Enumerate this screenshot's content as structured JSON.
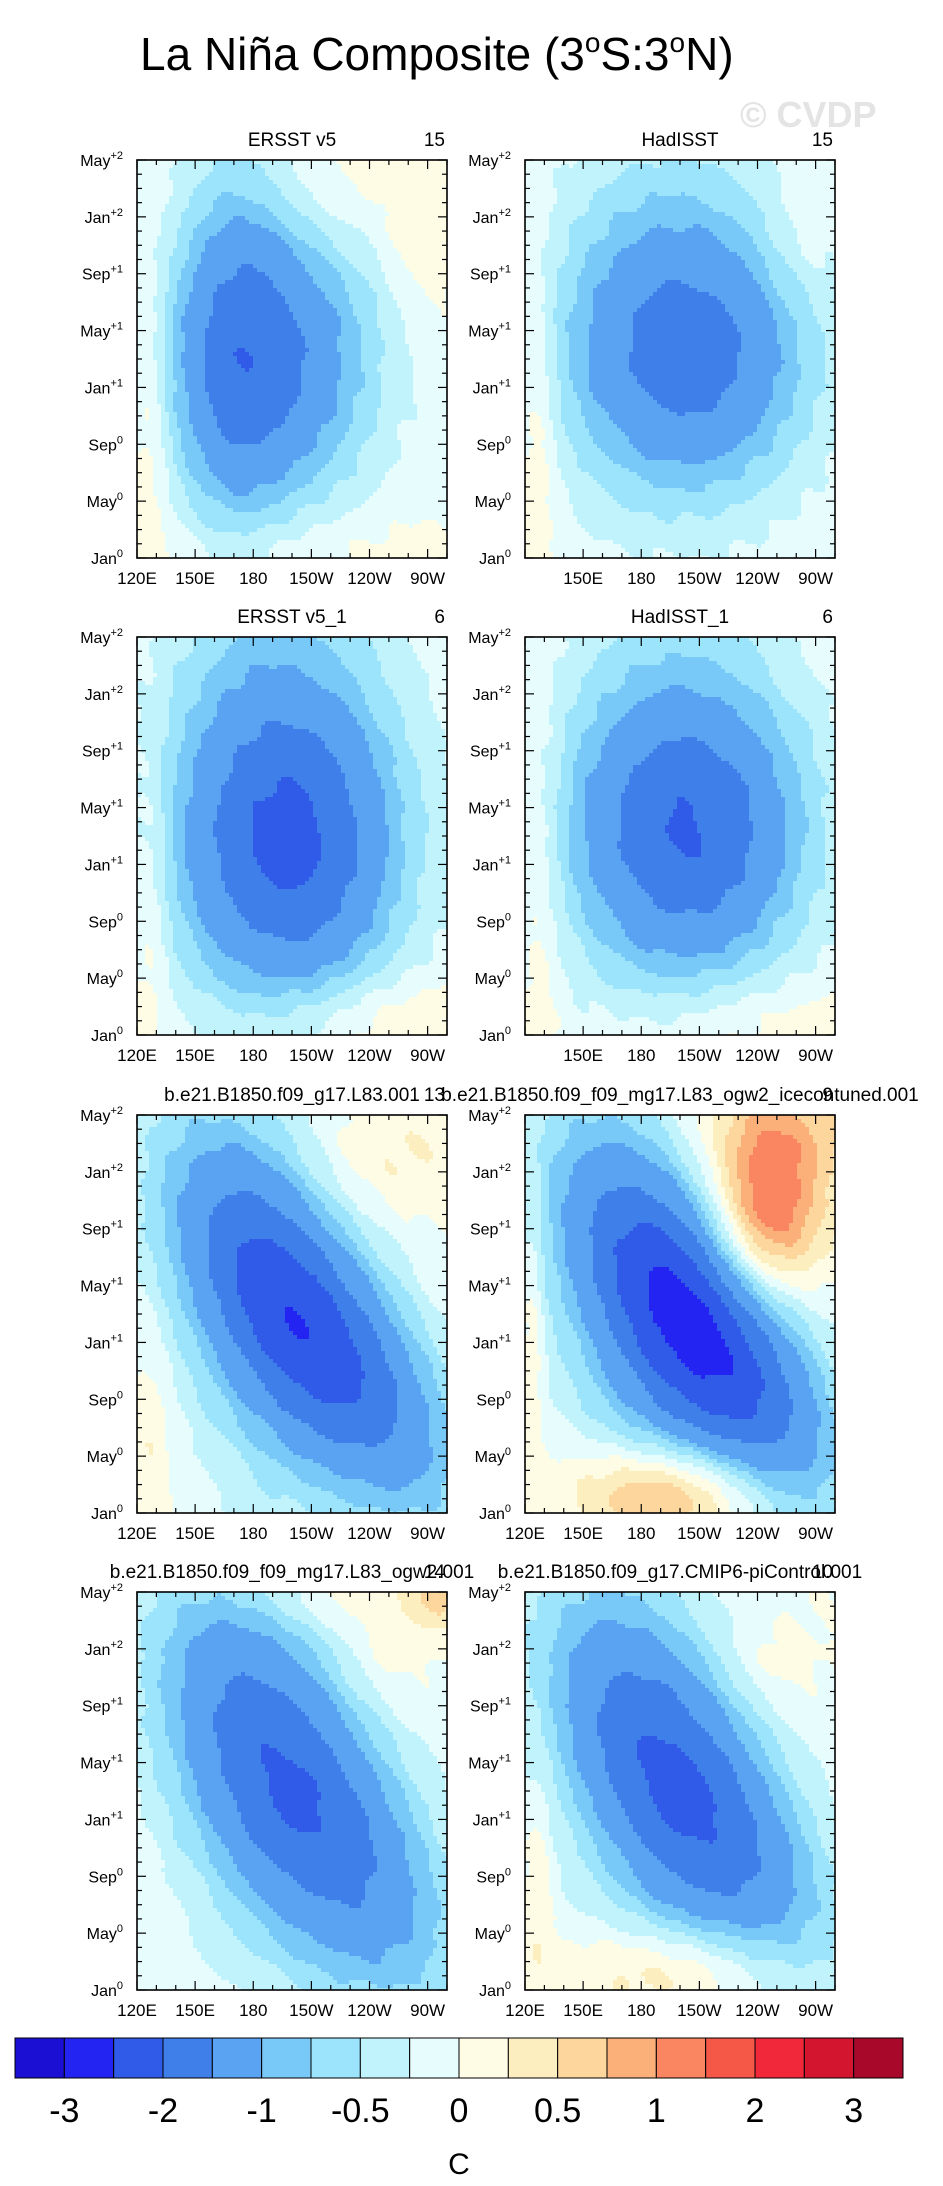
{
  "figure": {
    "title_main": "La Niña Composite (3",
    "title_sup1": "o",
    "title_mid": "S:3",
    "title_sup2": "o",
    "title_end": "N)",
    "watermark": "© CVDP",
    "colorbar_units": "C",
    "colorbar_colors": [
      "#1c0fd4",
      "#2424f2",
      "#2f5be8",
      "#3f7fe9",
      "#5aa2f2",
      "#78c8f8",
      "#9be4fc",
      "#c0f3fb",
      "#e6fcfd",
      "#fffce6",
      "#fdeec0",
      "#fcd69c",
      "#fbb07a",
      "#f98561",
      "#f65848",
      "#f0283a",
      "#d4152f",
      "#a8082a"
    ],
    "colorbar_labels": [
      "-3",
      "-2",
      "-1",
      "-0.5",
      "0",
      "0.5",
      "1",
      "2",
      "3"
    ]
  },
  "chart_data": [
    {
      "type": "heatmap",
      "title": "ERSST v5",
      "count": "15",
      "x_ticks": [
        "120E",
        "150E",
        "180",
        "150W",
        "120W",
        "90W"
      ],
      "y_ticks": [
        {
          "base": "Jan",
          "sup": "0"
        },
        {
          "base": "May",
          "sup": "0"
        },
        {
          "base": "Sep",
          "sup": "0"
        },
        {
          "base": "Jan",
          "sup": "+1"
        },
        {
          "base": "May",
          "sup": "+1"
        },
        {
          "base": "Sep",
          "sup": "+1"
        },
        {
          "base": "Jan",
          "sup": "+2"
        },
        {
          "base": "May",
          "sup": "+2"
        }
      ],
      "xlim": [
        120,
        280
      ],
      "ylim": [
        0,
        28
      ],
      "features": [
        {
          "lon": 190,
          "month": 14,
          "value": -1.55,
          "sx": 38,
          "sy": 7.5,
          "tilt": 0
        },
        {
          "lon": 168,
          "month": 15,
          "value": -0.6,
          "sx": 20,
          "sy": 11,
          "tilt": 0
        },
        {
          "lon": 127,
          "month": 10,
          "value": 0.35,
          "sx": 7,
          "sy": 8,
          "tilt": 0
        },
        {
          "lon": 266,
          "month": 22,
          "value": 0.3,
          "sx": 12,
          "sy": 3,
          "tilt": 0
        },
        {
          "lon": 225,
          "month": 26,
          "value": 0.25,
          "sx": 25,
          "sy": 3,
          "tilt": 0
        },
        {
          "lon": 200,
          "month": 0.5,
          "value": 0.2,
          "sx": 60,
          "sy": 2,
          "tilt": 0
        }
      ]
    },
    {
      "type": "heatmap",
      "title": "HadISST",
      "count": "15",
      "x_ticks": [
        "",
        "150E",
        "180",
        "150W",
        "120W",
        "90W"
      ],
      "y_ticks": [
        {
          "base": "Jan",
          "sup": "0"
        },
        {
          "base": "May",
          "sup": "0"
        },
        {
          "base": "Sep",
          "sup": "0"
        },
        {
          "base": "Jan",
          "sup": "+1"
        },
        {
          "base": "May",
          "sup": "+1"
        },
        {
          "base": "Sep",
          "sup": "+1"
        },
        {
          "base": "Jan",
          "sup": "+2"
        },
        {
          "base": "May",
          "sup": "+2"
        }
      ],
      "xlim": [
        120,
        280
      ],
      "ylim": [
        0,
        28
      ],
      "features": [
        {
          "lon": 205,
          "month": 14,
          "value": -1.45,
          "sx": 45,
          "sy": 7,
          "tilt": 0
        },
        {
          "lon": 190,
          "month": 20,
          "value": -0.45,
          "sx": 45,
          "sy": 10,
          "tilt": 0
        },
        {
          "lon": 127,
          "month": 10,
          "value": 0.35,
          "sx": 7,
          "sy": 9,
          "tilt": 0
        },
        {
          "lon": 260,
          "month": 22,
          "value": 0.2,
          "sx": 14,
          "sy": 3,
          "tilt": 0
        }
      ]
    },
    {
      "type": "heatmap",
      "title": "ERSST v5_1",
      "count": "6",
      "x_ticks": [
        "120E",
        "150E",
        "180",
        "150W",
        "120W",
        "90W"
      ],
      "y_ticks": [
        {
          "base": "Jan",
          "sup": "0"
        },
        {
          "base": "May",
          "sup": "0"
        },
        {
          "base": "Sep",
          "sup": "0"
        },
        {
          "base": "Jan",
          "sup": "+1"
        },
        {
          "base": "May",
          "sup": "+1"
        },
        {
          "base": "Sep",
          "sup": "+1"
        },
        {
          "base": "Jan",
          "sup": "+2"
        },
        {
          "base": "May",
          "sup": "+2"
        }
      ],
      "xlim": [
        120,
        280
      ],
      "ylim": [
        0,
        28
      ],
      "features": [
        {
          "lon": 200,
          "month": 13,
          "value": -1.55,
          "sx": 40,
          "sy": 7.5,
          "tilt": 0
        },
        {
          "lon": 190,
          "month": 20,
          "value": -0.75,
          "sx": 45,
          "sy": 13,
          "tilt": 0
        },
        {
          "lon": 127,
          "month": 9,
          "value": 0.35,
          "sx": 7,
          "sy": 9,
          "tilt": 0
        },
        {
          "lon": 240,
          "month": 1,
          "value": 0.4,
          "sx": 45,
          "sy": 2.2,
          "tilt": 0
        }
      ]
    },
    {
      "type": "heatmap",
      "title": "HadISST_1",
      "count": "6",
      "x_ticks": [
        "",
        "150E",
        "180",
        "150W",
        "120W",
        "90W"
      ],
      "y_ticks": [
        {
          "base": "Jan",
          "sup": "0"
        },
        {
          "base": "May",
          "sup": "0"
        },
        {
          "base": "Sep",
          "sup": "0"
        },
        {
          "base": "Jan",
          "sup": "+1"
        },
        {
          "base": "May",
          "sup": "+1"
        },
        {
          "base": "Sep",
          "sup": "+1"
        },
        {
          "base": "Jan",
          "sup": "+2"
        },
        {
          "base": "May",
          "sup": "+2"
        }
      ],
      "xlim": [
        120,
        280
      ],
      "ylim": [
        0,
        28
      ],
      "features": [
        {
          "lon": 205,
          "month": 14,
          "value": -1.55,
          "sx": 42,
          "sy": 7,
          "tilt": 0
        },
        {
          "lon": 195,
          "month": 19,
          "value": -0.55,
          "sx": 48,
          "sy": 12,
          "tilt": 0
        },
        {
          "lon": 128,
          "month": 11,
          "value": 0.3,
          "sx": 8,
          "sy": 11,
          "tilt": 0
        },
        {
          "lon": 235,
          "month": 1,
          "value": 0.3,
          "sx": 45,
          "sy": 2.2,
          "tilt": 0
        }
      ]
    },
    {
      "type": "heatmap",
      "title": "b.e21.B1850.f09_g17.L83.001",
      "count": "13",
      "x_ticks": [
        "120E",
        "150E",
        "180",
        "150W",
        "120W",
        "90W"
      ],
      "y_ticks": [
        {
          "base": "Jan",
          "sup": "0"
        },
        {
          "base": "May",
          "sup": "0"
        },
        {
          "base": "Sep",
          "sup": "0"
        },
        {
          "base": "Jan",
          "sup": "+1"
        },
        {
          "base": "May",
          "sup": "+1"
        },
        {
          "base": "Sep",
          "sup": "+1"
        },
        {
          "base": "Jan",
          "sup": "+2"
        },
        {
          "base": "May",
          "sup": "+2"
        }
      ],
      "xlim": [
        120,
        280
      ],
      "ylim": [
        0,
        28
      ],
      "features": [
        {
          "lon": 215,
          "month": 12,
          "value": -2.0,
          "sx": 48,
          "sy": 6,
          "tilt": -0.12
        },
        {
          "lon": 180,
          "month": 16,
          "value": -0.7,
          "sx": 35,
          "sy": 12,
          "tilt": -0.1
        },
        {
          "lon": 250,
          "month": 25,
          "value": 0.3,
          "sx": 30,
          "sy": 3,
          "tilt": 0
        },
        {
          "lon": 127,
          "month": 5,
          "value": 0.3,
          "sx": 7,
          "sy": 6,
          "tilt": 0
        }
      ]
    },
    {
      "type": "heatmap",
      "title": "b.e21.B1850.f09_f09_mg17.L83_ogw2_icecontuned.001",
      "count": "9",
      "x_ticks": [
        "120E",
        "150E",
        "180",
        "150W",
        "120W",
        "90W"
      ],
      "y_ticks": [
        {
          "base": "Jan",
          "sup": "0"
        },
        {
          "base": "May",
          "sup": "0"
        },
        {
          "base": "Sep",
          "sup": "0"
        },
        {
          "base": "Jan",
          "sup": "+1"
        },
        {
          "base": "May",
          "sup": "+1"
        },
        {
          "base": "Sep",
          "sup": "+1"
        },
        {
          "base": "Jan",
          "sup": "+2"
        },
        {
          "base": "May",
          "sup": "+2"
        }
      ],
      "xlim": [
        120,
        280
      ],
      "ylim": [
        0,
        28
      ],
      "features": [
        {
          "lon": 215,
          "month": 12,
          "value": -2.2,
          "sx": 45,
          "sy": 6,
          "tilt": -0.12
        },
        {
          "lon": 180,
          "month": 15,
          "value": -0.8,
          "sx": 38,
          "sy": 12,
          "tilt": -0.1
        },
        {
          "lon": 245,
          "month": 21,
          "value": 1.35,
          "sx": 20,
          "sy": 4,
          "tilt": 0
        },
        {
          "lon": 250,
          "month": 27,
          "value": 0.6,
          "sx": 35,
          "sy": 3,
          "tilt": 0
        },
        {
          "lon": 195,
          "month": 1.2,
          "value": 1.25,
          "sx": 35,
          "sy": 2.5,
          "tilt": 0
        },
        {
          "lon": 124,
          "month": 13,
          "value": 0.35,
          "sx": 4,
          "sy": 9,
          "tilt": 0
        }
      ]
    },
    {
      "type": "heatmap",
      "title": "b.e21.B1850.f09_f09_mg17.L83_ogw2.001",
      "count": "14",
      "x_ticks": [
        "120E",
        "150E",
        "180",
        "150W",
        "120W",
        "90W"
      ],
      "y_ticks": [
        {
          "base": "Jan",
          "sup": "0"
        },
        {
          "base": "May",
          "sup": "0"
        },
        {
          "base": "Sep",
          "sup": "0"
        },
        {
          "base": "Jan",
          "sup": "+1"
        },
        {
          "base": "May",
          "sup": "+1"
        },
        {
          "base": "Sep",
          "sup": "+1"
        },
        {
          "base": "Jan",
          "sup": "+2"
        },
        {
          "base": "May",
          "sup": "+2"
        }
      ],
      "xlim": [
        120,
        280
      ],
      "ylim": [
        0,
        28
      ],
      "features": [
        {
          "lon": 215,
          "month": 12,
          "value": -1.6,
          "sx": 48,
          "sy": 7,
          "tilt": -0.12
        },
        {
          "lon": 175,
          "month": 18,
          "value": -0.7,
          "sx": 38,
          "sy": 12,
          "tilt": -0.1
        },
        {
          "lon": 225,
          "month": 27.5,
          "value": 0.3,
          "sx": 50,
          "sy": 1.5,
          "tilt": 0
        },
        {
          "lon": 274,
          "month": 28,
          "value": 0.5,
          "sx": 8,
          "sy": 2,
          "tilt": 0
        },
        {
          "lon": 245,
          "month": 23,
          "value": 0.2,
          "sx": 14,
          "sy": 2,
          "tilt": 0
        }
      ]
    },
    {
      "type": "heatmap",
      "title": "b.e21.B1850.f09_g17.CMIP6-piControl.001",
      "count": "10",
      "x_ticks": [
        "120E",
        "150E",
        "180",
        "150W",
        "120W",
        "90W"
      ],
      "y_ticks": [
        {
          "base": "Jan",
          "sup": "0"
        },
        {
          "base": "May",
          "sup": "0"
        },
        {
          "base": "Sep",
          "sup": "0"
        },
        {
          "base": "Jan",
          "sup": "+1"
        },
        {
          "base": "May",
          "sup": "+1"
        },
        {
          "base": "Sep",
          "sup": "+1"
        },
        {
          "base": "Jan",
          "sup": "+2"
        },
        {
          "base": "May",
          "sup": "+2"
        }
      ],
      "xlim": [
        120,
        280
      ],
      "ylim": [
        0,
        28
      ],
      "features": [
        {
          "lon": 210,
          "month": 13,
          "value": -1.6,
          "sx": 48,
          "sy": 6.5,
          "tilt": -0.12
        },
        {
          "lon": 180,
          "month": 16,
          "value": -0.7,
          "sx": 38,
          "sy": 11,
          "tilt": -0.1
        },
        {
          "lon": 200,
          "month": 1.2,
          "value": 0.7,
          "sx": 40,
          "sy": 2.4,
          "tilt": 0
        },
        {
          "lon": 245,
          "month": 23,
          "value": 0.2,
          "sx": 15,
          "sy": 2,
          "tilt": 0
        },
        {
          "lon": 127,
          "month": 8,
          "value": 0.3,
          "sx": 5,
          "sy": 6,
          "tilt": 0
        }
      ]
    }
  ]
}
